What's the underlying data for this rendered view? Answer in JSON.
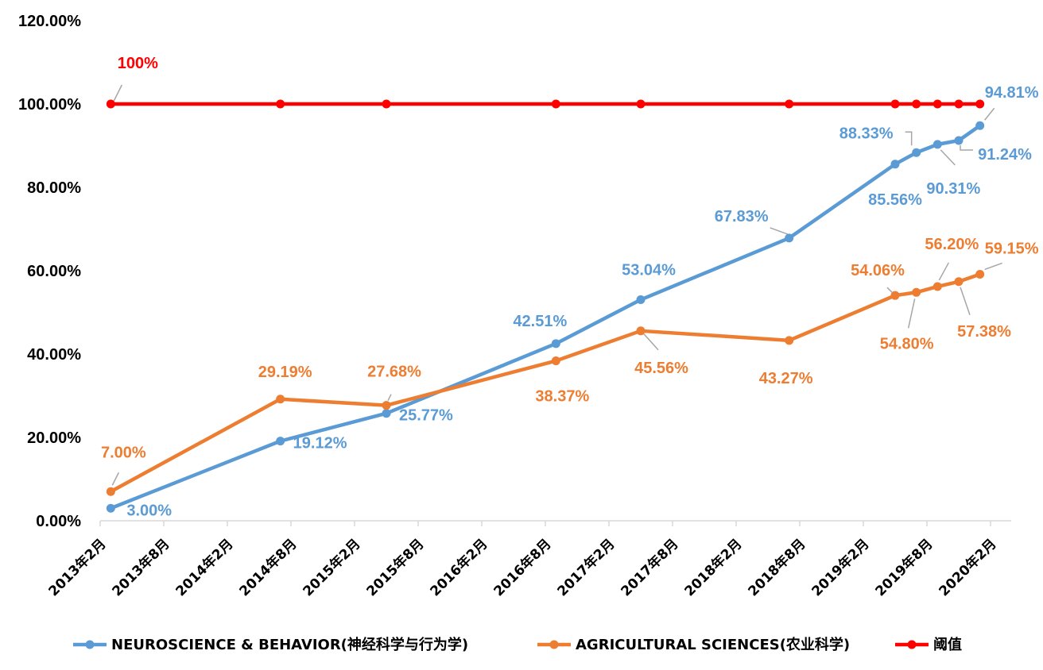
{
  "chart_data": {
    "type": "line",
    "title": "",
    "xlabel": "",
    "ylabel": "",
    "ylim": [
      0,
      120
    ],
    "yticks": [
      "0.00%",
      "20.00%",
      "40.00%",
      "60.00%",
      "80.00%",
      "100.00%",
      "120.00%"
    ],
    "categories": [
      "2013年2月",
      "2013年8月",
      "2014年2月",
      "2014年8月",
      "2015年2月",
      "2015年8月",
      "2016年2月",
      "2016年8月",
      "2017年2月",
      "2017年8月",
      "2018年2月",
      "2018年8月",
      "2019年2月",
      "2019年8月",
      "2020年2月"
    ],
    "grid": false,
    "legend_position": "bottom",
    "series": [
      {
        "name": "NEUROSCIENCE & BEHAVIOR(神经科学与行为学)",
        "color": "#5b9bd5",
        "points": [
          {
            "x": "2013-03",
            "y": 3.0,
            "label": "3.00%"
          },
          {
            "x": "2014-07",
            "y": 19.12,
            "label": "19.12%"
          },
          {
            "x": "2015-05",
            "y": 25.77,
            "label": "25.77%"
          },
          {
            "x": "2016-09",
            "y": 42.51,
            "label": "42.51%"
          },
          {
            "x": "2017-05",
            "y": 53.04,
            "label": "53.04%"
          },
          {
            "x": "2018-07",
            "y": 67.83,
            "label": "67.83%"
          },
          {
            "x": "2019-05",
            "y": 85.56,
            "label": "85.56%"
          },
          {
            "x": "2019-07",
            "y": 88.33,
            "label": "88.33%"
          },
          {
            "x": "2019-09",
            "y": 90.31,
            "label": "90.31%"
          },
          {
            "x": "2019-11",
            "y": 91.24,
            "label": "91.24%"
          },
          {
            "x": "2020-01",
            "y": 94.81,
            "label": "94.81%"
          }
        ]
      },
      {
        "name": "AGRICULTURAL SCIENCES(农业科学)",
        "color": "#ed7d31",
        "points": [
          {
            "x": "2013-03",
            "y": 7.0,
            "label": "7.00%"
          },
          {
            "x": "2014-07",
            "y": 29.19,
            "label": "29.19%"
          },
          {
            "x": "2015-05",
            "y": 27.68,
            "label": "27.68%"
          },
          {
            "x": "2016-09",
            "y": 38.37,
            "label": "38.37%"
          },
          {
            "x": "2017-05",
            "y": 45.56,
            "label": "45.56%"
          },
          {
            "x": "2018-07",
            "y": 43.27,
            "label": "43.27%"
          },
          {
            "x": "2019-05",
            "y": 54.06,
            "label": "54.06%"
          },
          {
            "x": "2019-07",
            "y": 54.8,
            "label": "54.80%"
          },
          {
            "x": "2019-09",
            "y": 56.2,
            "label": "56.20%"
          },
          {
            "x": "2019-11",
            "y": 57.38,
            "label": "57.38%"
          },
          {
            "x": "2020-01",
            "y": 59.15,
            "label": "59.15%"
          }
        ]
      },
      {
        "name": "阈值",
        "color": "#ff0000",
        "points": [
          {
            "x": "2013-03",
            "y": 100,
            "label": "100%"
          },
          {
            "x": "2014-07",
            "y": 100
          },
          {
            "x": "2015-05",
            "y": 100
          },
          {
            "x": "2016-09",
            "y": 100
          },
          {
            "x": "2017-05",
            "y": 100
          },
          {
            "x": "2018-07",
            "y": 100
          },
          {
            "x": "2019-05",
            "y": 100
          },
          {
            "x": "2019-07",
            "y": 100
          },
          {
            "x": "2019-09",
            "y": 100
          },
          {
            "x": "2019-11",
            "y": 100
          },
          {
            "x": "2020-01",
            "y": 100
          }
        ]
      }
    ]
  }
}
